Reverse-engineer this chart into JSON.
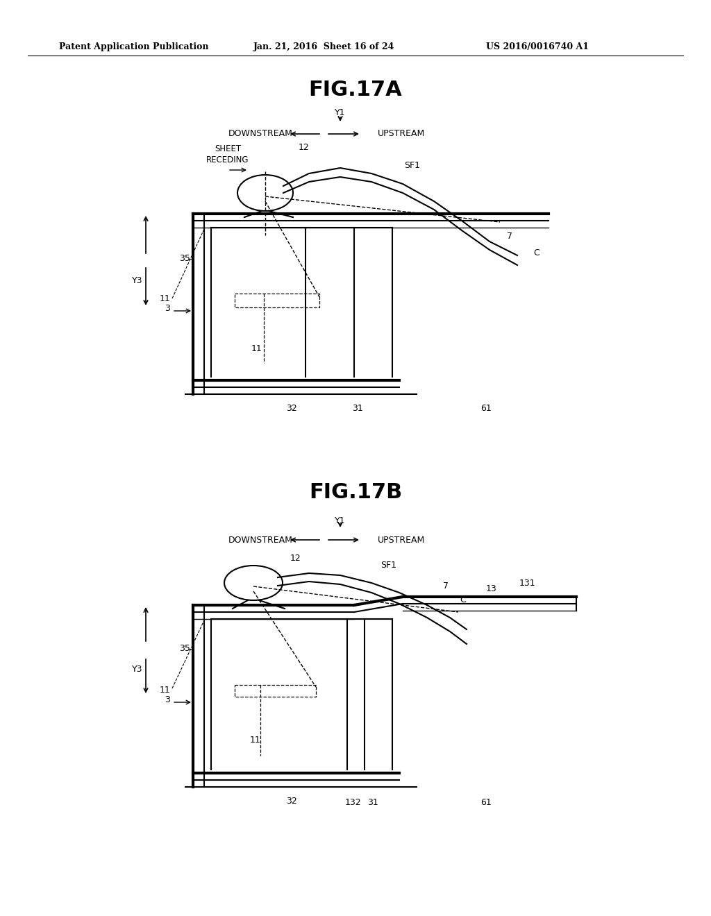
{
  "header_left": "Patent Application Publication",
  "header_center": "Jan. 21, 2016  Sheet 16 of 24",
  "header_right": "US 2016/0016740 A1",
  "fig17a_title": "FIG.17A",
  "fig17b_title": "FIG.17B",
  "bg_color": "#ffffff",
  "line_color": "#000000"
}
